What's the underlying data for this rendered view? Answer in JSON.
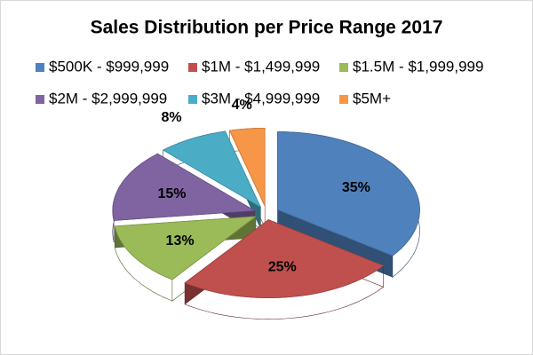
{
  "chart_data": {
    "type": "pie",
    "title": "Sales Distribution per Price Range 2017",
    "categories": [
      "$500K - $999,999",
      "$1M - $1,499,999",
      "$1.5M - $1,999,999",
      "$2M - $2,999,999",
      "$3M - $4,999,999",
      "$5M+"
    ],
    "values": [
      35,
      25,
      13,
      15,
      8,
      4
    ],
    "value_labels": [
      "35%",
      "25%",
      "13%",
      "15%",
      "8%",
      "4%"
    ],
    "colors": [
      "#4f81bd",
      "#c0504d",
      "#9bbb59",
      "#8064a2",
      "#4bacc6",
      "#f79646"
    ],
    "legend": "top"
  }
}
